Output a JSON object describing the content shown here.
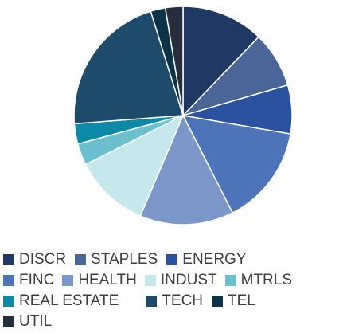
{
  "chart_data": {
    "type": "pie",
    "title": "",
    "slices": [
      {
        "label": "DISCR",
        "value": 12.2,
        "color": "#1f3864"
      },
      {
        "label": "STAPLES",
        "value": 8.3,
        "color": "#4a6699"
      },
      {
        "label": "ENERGY",
        "value": 7.2,
        "color": "#2a52a0"
      },
      {
        "label": "FINC",
        "value": 14.8,
        "color": "#4d74b8"
      },
      {
        "label": "HEALTH",
        "value": 13.9,
        "color": "#7b97c9"
      },
      {
        "label": "INDUST",
        "value": 11.2,
        "color": "#c5e8ec"
      },
      {
        "label": "MTRLS",
        "value": 3.2,
        "color": "#6bbfcf"
      },
      {
        "label": "REAL ESTATE",
        "value": 3.0,
        "color": "#0b89a6"
      },
      {
        "label": "TECH",
        "value": 21.4,
        "color": "#1f4b6b"
      },
      {
        "label": "TEL",
        "value": 2.2,
        "color": "#0d3349"
      },
      {
        "label": "UTIL",
        "value": 2.6,
        "color": "#262d3b"
      }
    ],
    "start_angle_deg": 0,
    "direction": "clockwise",
    "slice_border_color": "#ffffff",
    "legend_position": "bottom"
  }
}
